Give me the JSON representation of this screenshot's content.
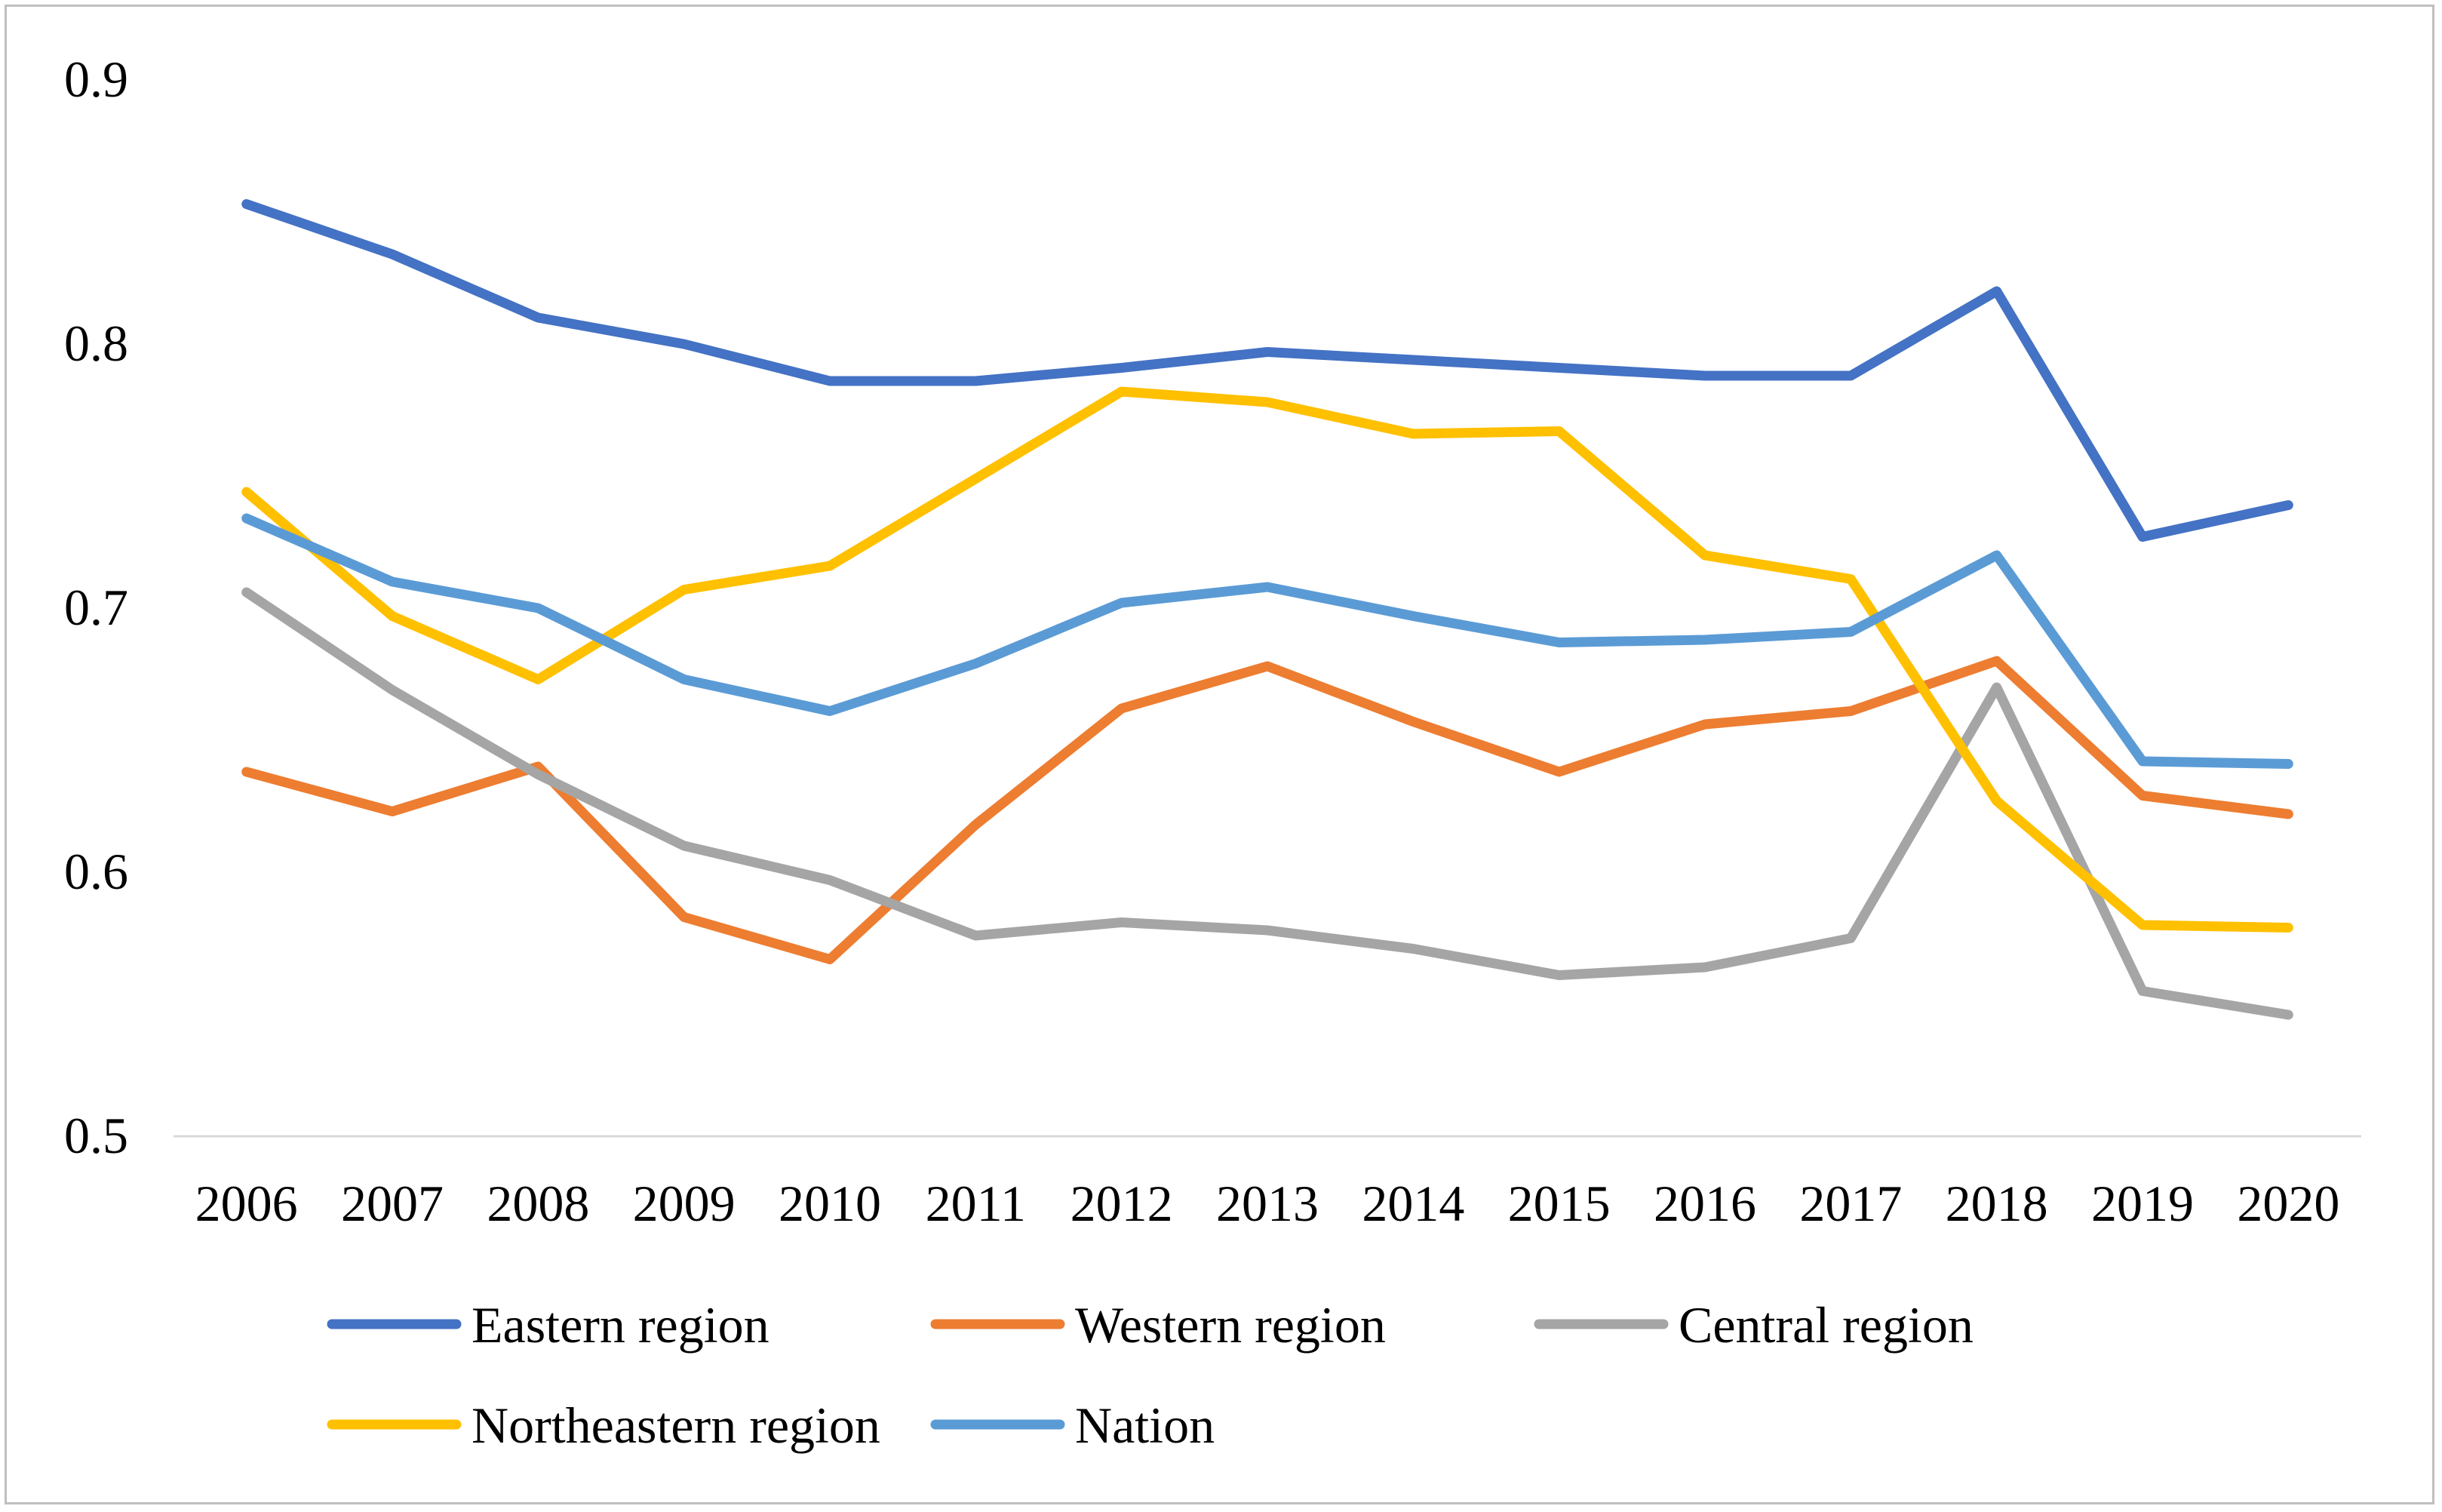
{
  "chart_data": {
    "type": "line",
    "title": "",
    "xlabel": "",
    "ylabel": "",
    "ylim": [
      0.5,
      0.9
    ],
    "ytick_step": 0.1,
    "ytick_labels": [
      "0.5",
      "0.6",
      "0.7",
      "0.8",
      "0.9"
    ],
    "grid": false,
    "legend_position": "bottom",
    "categories": [
      "2006",
      "2007",
      "2008",
      "2009",
      "2010",
      "2011",
      "2012",
      "2013",
      "2014",
      "2015",
      "2016",
      "2017",
      "2018",
      "2019",
      "2020"
    ],
    "series": [
      {
        "name": "Eastern region",
        "color": "#4472C4",
        "values": [
          0.853,
          0.834,
          0.81,
          0.8,
          0.786,
          0.786,
          0.791,
          0.797,
          0.794,
          0.791,
          0.788,
          0.788,
          0.82,
          0.727,
          0.739
        ]
      },
      {
        "name": "Western region",
        "color": "#ED7D31",
        "values": [
          0.638,
          0.623,
          0.64,
          0.583,
          0.567,
          0.618,
          0.662,
          0.678,
          0.657,
          0.638,
          0.656,
          0.661,
          0.68,
          0.629,
          0.622
        ]
      },
      {
        "name": "Central region",
        "color": "#A5A5A5",
        "values": [
          0.706,
          0.669,
          0.637,
          0.61,
          0.597,
          0.576,
          0.581,
          0.578,
          0.571,
          0.561,
          0.564,
          0.575,
          0.67,
          0.555,
          0.546
        ]
      },
      {
        "name": "Northeastern region",
        "color": "#FFC000",
        "values": [
          0.744,
          0.697,
          0.673,
          0.707,
          0.716,
          0.749,
          0.782,
          0.778,
          0.766,
          0.767,
          0.72,
          0.711,
          0.627,
          0.58,
          0.579
        ]
      },
      {
        "name": "Nation",
        "color": "#5B9BD5",
        "values": [
          0.734,
          0.71,
          0.7,
          0.673,
          0.661,
          0.679,
          0.702,
          0.708,
          0.697,
          0.687,
          0.688,
          0.691,
          0.72,
          0.642,
          0.641
        ]
      }
    ]
  }
}
